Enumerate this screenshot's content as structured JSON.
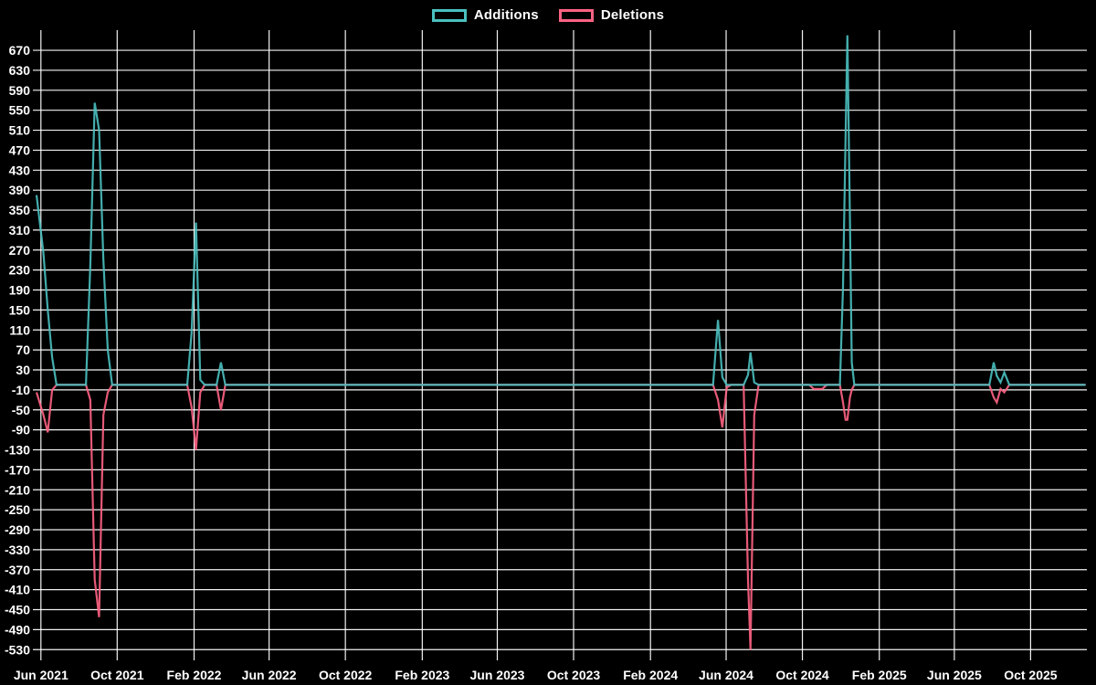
{
  "legend": {
    "items": [
      {
        "id": "additions",
        "label": "Additions",
        "color": "#4bc0c0"
      },
      {
        "id": "deletions",
        "label": "Deletions",
        "color": "#ff6384"
      }
    ]
  },
  "colors": {
    "background": "#000000",
    "grid": "#ffffff",
    "text": "#ffffff",
    "additions": "#4bc0c0",
    "deletions": "#ff6384"
  },
  "chart_data": {
    "type": "line",
    "title": "",
    "xlabel": "",
    "ylabel": "",
    "legend_position": "top",
    "grid": true,
    "x_domain": [
      "2021-05-25",
      "2025-12-30"
    ],
    "y_domain": [
      -535,
      703
    ],
    "y_ticks": [
      670,
      630,
      590,
      550,
      510,
      470,
      430,
      390,
      350,
      310,
      270,
      230,
      190,
      150,
      110,
      70,
      30,
      -10,
      -50,
      -90,
      -130,
      -170,
      -210,
      -250,
      -290,
      -330,
      -370,
      -410,
      -450,
      -490,
      -530
    ],
    "x_ticks": [
      {
        "date": "2021-06-01",
        "label": "Jun 2021"
      },
      {
        "date": "2021-10-01",
        "label": "Oct 2021"
      },
      {
        "date": "2022-02-01",
        "label": "Feb 2022"
      },
      {
        "date": "2022-06-01",
        "label": "Jun 2022"
      },
      {
        "date": "2022-10-01",
        "label": "Oct 2022"
      },
      {
        "date": "2023-02-01",
        "label": "Feb 2023"
      },
      {
        "date": "2023-06-01",
        "label": "Jun 2023"
      },
      {
        "date": "2023-10-01",
        "label": "Oct 2023"
      },
      {
        "date": "2024-02-01",
        "label": "Feb 2024"
      },
      {
        "date": "2024-06-01",
        "label": "Jun 2024"
      },
      {
        "date": "2024-10-01",
        "label": "Oct 2024"
      },
      {
        "date": "2025-02-01",
        "label": "Feb 2025"
      },
      {
        "date": "2025-06-01",
        "label": "Jun 2025"
      },
      {
        "date": "2025-10-01",
        "label": "Oct 2025"
      }
    ],
    "series": [
      {
        "name": "Additions",
        "key": "additions",
        "color": "#4bc0c0"
      },
      {
        "name": "Deletions",
        "key": "deletions",
        "color": "#ff6384"
      }
    ],
    "points": [
      {
        "date": "2021-05-25",
        "additions": 380,
        "deletions": -15
      },
      {
        "date": "2021-06-05",
        "additions": 265,
        "deletions": -60
      },
      {
        "date": "2021-06-12",
        "additions": 150,
        "deletions": -95
      },
      {
        "date": "2021-06-19",
        "additions": 55,
        "deletions": -10
      },
      {
        "date": "2021-06-26",
        "additions": 0,
        "deletions": 0
      },
      {
        "date": "2021-08-12",
        "additions": 0,
        "deletions": 0
      },
      {
        "date": "2021-08-19",
        "additions": 240,
        "deletions": -30
      },
      {
        "date": "2021-08-26",
        "additions": 565,
        "deletions": -390
      },
      {
        "date": "2021-09-02",
        "additions": 510,
        "deletions": -465
      },
      {
        "date": "2021-09-09",
        "additions": 250,
        "deletions": -60
      },
      {
        "date": "2021-09-16",
        "additions": 70,
        "deletions": -15
      },
      {
        "date": "2021-09-23",
        "additions": 0,
        "deletions": 0
      },
      {
        "date": "2022-01-21",
        "additions": 0,
        "deletions": 0
      },
      {
        "date": "2022-01-28",
        "additions": 105,
        "deletions": -45
      },
      {
        "date": "2022-02-04",
        "additions": 325,
        "deletions": -130
      },
      {
        "date": "2022-02-11",
        "additions": 10,
        "deletions": -15
      },
      {
        "date": "2022-02-18",
        "additions": 0,
        "deletions": 0
      },
      {
        "date": "2022-03-09",
        "additions": 0,
        "deletions": 0
      },
      {
        "date": "2022-03-16",
        "additions": 45,
        "deletions": -50
      },
      {
        "date": "2022-03-23",
        "additions": 0,
        "deletions": 0
      },
      {
        "date": "2024-05-11",
        "additions": 0,
        "deletions": 0
      },
      {
        "date": "2024-05-19",
        "additions": 130,
        "deletions": -30
      },
      {
        "date": "2024-05-26",
        "additions": 15,
        "deletions": -85
      },
      {
        "date": "2024-06-02",
        "additions": 0,
        "deletions": -5
      },
      {
        "date": "2024-06-09",
        "additions": 0,
        "deletions": 0
      },
      {
        "date": "2024-06-29",
        "additions": 0,
        "deletions": 0
      },
      {
        "date": "2024-07-06",
        "additions": 20,
        "deletions": -390
      },
      {
        "date": "2024-07-10",
        "additions": 65,
        "deletions": -530
      },
      {
        "date": "2024-07-16",
        "additions": 5,
        "deletions": -60
      },
      {
        "date": "2024-07-23",
        "additions": 0,
        "deletions": 0
      },
      {
        "date": "2024-10-12",
        "additions": 0,
        "deletions": 0
      },
      {
        "date": "2024-10-19",
        "additions": 0,
        "deletions": -8
      },
      {
        "date": "2024-11-02",
        "additions": 0,
        "deletions": -8
      },
      {
        "date": "2024-11-09",
        "additions": 0,
        "deletions": 0
      },
      {
        "date": "2024-11-30",
        "additions": 0,
        "deletions": 0
      },
      {
        "date": "2024-12-05",
        "additions": 195,
        "deletions": -35
      },
      {
        "date": "2024-12-09",
        "additions": 495,
        "deletions": -70
      },
      {
        "date": "2024-12-12",
        "additions": 700,
        "deletions": -70
      },
      {
        "date": "2024-12-16",
        "additions": 330,
        "deletions": -25
      },
      {
        "date": "2024-12-19",
        "additions": 45,
        "deletions": -10
      },
      {
        "date": "2024-12-23",
        "additions": 0,
        "deletions": 0
      },
      {
        "date": "2025-07-27",
        "additions": 0,
        "deletions": 0
      },
      {
        "date": "2025-08-03",
        "additions": 45,
        "deletions": -25
      },
      {
        "date": "2025-08-08",
        "additions": 18,
        "deletions": -35
      },
      {
        "date": "2025-08-14",
        "additions": 5,
        "deletions": -8
      },
      {
        "date": "2025-08-20",
        "additions": 25,
        "deletions": -15
      },
      {
        "date": "2025-08-28",
        "additions": 0,
        "deletions": 0
      },
      {
        "date": "2025-12-28",
        "additions": 0,
        "deletions": 0
      }
    ]
  }
}
